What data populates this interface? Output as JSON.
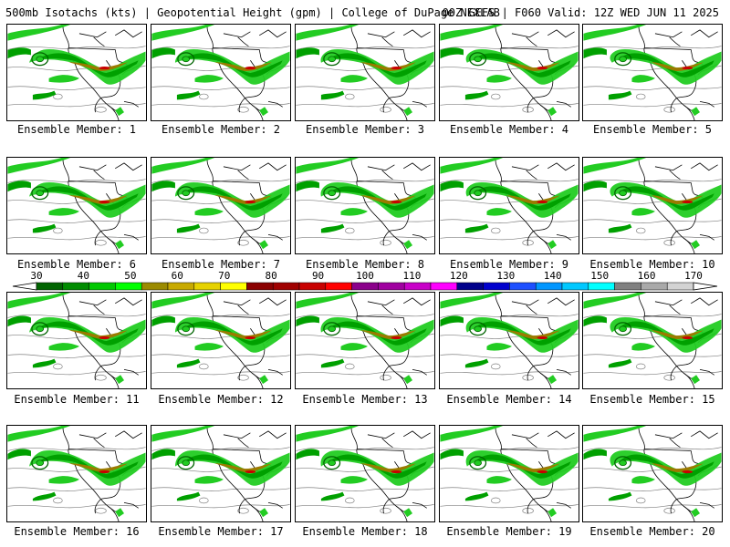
{
  "header": {
    "title_left": "500mb Isotachs (kts) | Geopotential Height (gpm) | College of DuPage NEXLAB",
    "title_right": "00Z GEFS | F060 Valid: 12Z WED JUN 11 2025"
  },
  "panels": [
    {
      "caption": "Ensemble Member: 1"
    },
    {
      "caption": "Ensemble Member: 2"
    },
    {
      "caption": "Ensemble Member: 3"
    },
    {
      "caption": "Ensemble Member: 4"
    },
    {
      "caption": "Ensemble Member: 5"
    },
    {
      "caption": "Ensemble Member: 6"
    },
    {
      "caption": "Ensemble Member: 7"
    },
    {
      "caption": "Ensemble Member: 8"
    },
    {
      "caption": "Ensemble Member: 9"
    },
    {
      "caption": "Ensemble Member: 10"
    },
    {
      "caption": "Ensemble Member: 11"
    },
    {
      "caption": "Ensemble Member: 12"
    },
    {
      "caption": "Ensemble Member: 13"
    },
    {
      "caption": "Ensemble Member: 14"
    },
    {
      "caption": "Ensemble Member: 15"
    },
    {
      "caption": "Ensemble Member: 16"
    },
    {
      "caption": "Ensemble Member: 17"
    },
    {
      "caption": "Ensemble Member: 18"
    },
    {
      "caption": "Ensemble Member: 19"
    },
    {
      "caption": "Ensemble Member: 20"
    }
  ],
  "colorbar": {
    "labels": [
      "30",
      "40",
      "50",
      "60",
      "70",
      "80",
      "90",
      "100",
      "110",
      "120",
      "130",
      "140",
      "150",
      "160",
      "170"
    ],
    "colors": [
      "#006400",
      "#008c00",
      "#00c800",
      "#00ff00",
      "#9b8b00",
      "#c8aa00",
      "#e6d200",
      "#ffff00",
      "#8b0000",
      "#a00000",
      "#c80000",
      "#ff0000",
      "#8b008b",
      "#a000a0",
      "#c800c8",
      "#ff00ff",
      "#00008b",
      "#0000cd",
      "#1e50ff",
      "#0096ff",
      "#00c8ff",
      "#00ffff",
      "#808080",
      "#a9a9a9",
      "#d3d3d3"
    ]
  },
  "map_colors": {
    "jet_dark": "#006400",
    "jet_mid": "#00a000",
    "jet_light": "#22cc22",
    "jet_core": "#9b7a00",
    "jet_max": "#c80000",
    "coast": "#000000",
    "height_contour": "#808080"
  }
}
